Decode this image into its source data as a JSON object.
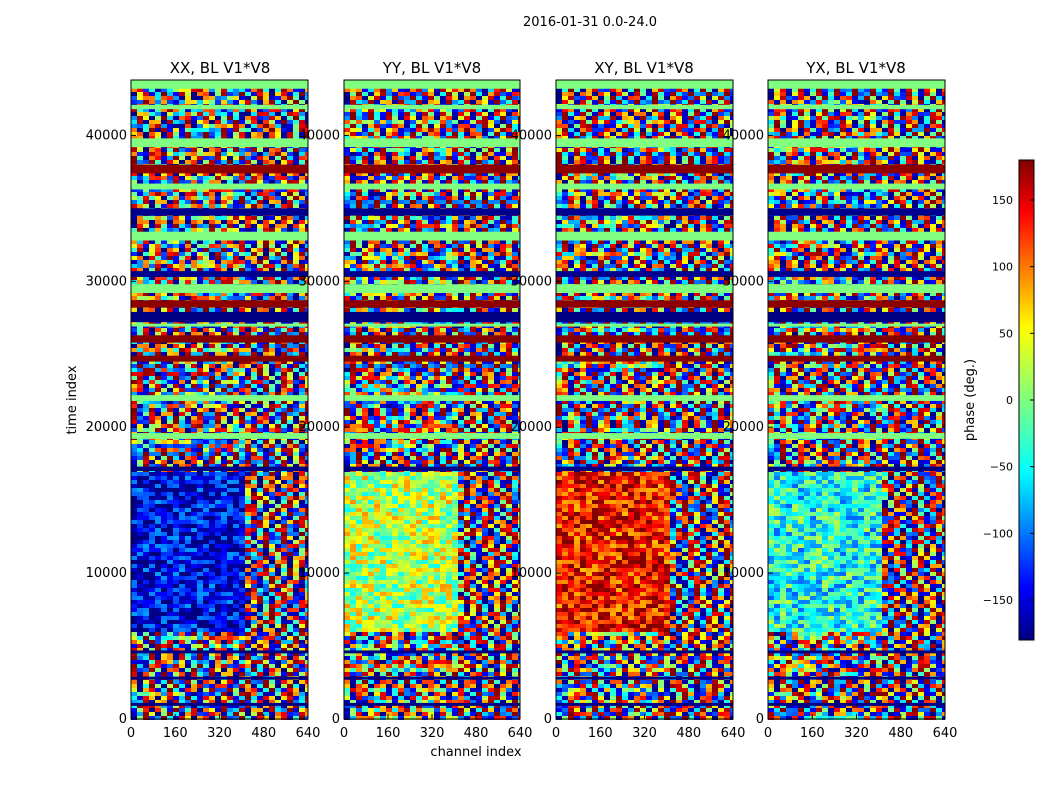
{
  "chart_data": {
    "type": "heatmap",
    "suptitle": "2016-01-31 0.0-24.0",
    "xlabel": "channel index",
    "ylabel": "time index",
    "x_range": [
      0,
      640
    ],
    "y_range": [
      0,
      43800
    ],
    "x_ticks": [
      0,
      160,
      320,
      480,
      640
    ],
    "y_ticks": [
      0,
      10000,
      20000,
      30000,
      40000
    ],
    "panels": [
      {
        "title": "XX, BL V1*V8",
        "dominant_phase": -140,
        "split_channel": 405
      },
      {
        "title": "YY, BL V1*V8",
        "dominant_phase": 20,
        "split_channel": 405
      },
      {
        "title": "XY, BL V1*V8",
        "dominant_phase": 130,
        "split_channel": 405
      },
      {
        "title": "YX, BL V1*V8",
        "dominant_phase": -40,
        "split_channel": 405
      }
    ],
    "colorbar": {
      "label": "phase (deg.)",
      "range": [
        -180,
        180
      ],
      "ticks": [
        150,
        100,
        50,
        0,
        -50,
        -100,
        -150
      ],
      "tick_labels": [
        "150",
        "100",
        "50",
        "0",
        "−50",
        "−100",
        "−150"
      ],
      "colormap": "jet"
    },
    "colormap_stops": [
      "#000080",
      "#0000ff",
      "#00ffff",
      "#7fff7f",
      "#ffff00",
      "#ff0000",
      "#800000"
    ]
  }
}
